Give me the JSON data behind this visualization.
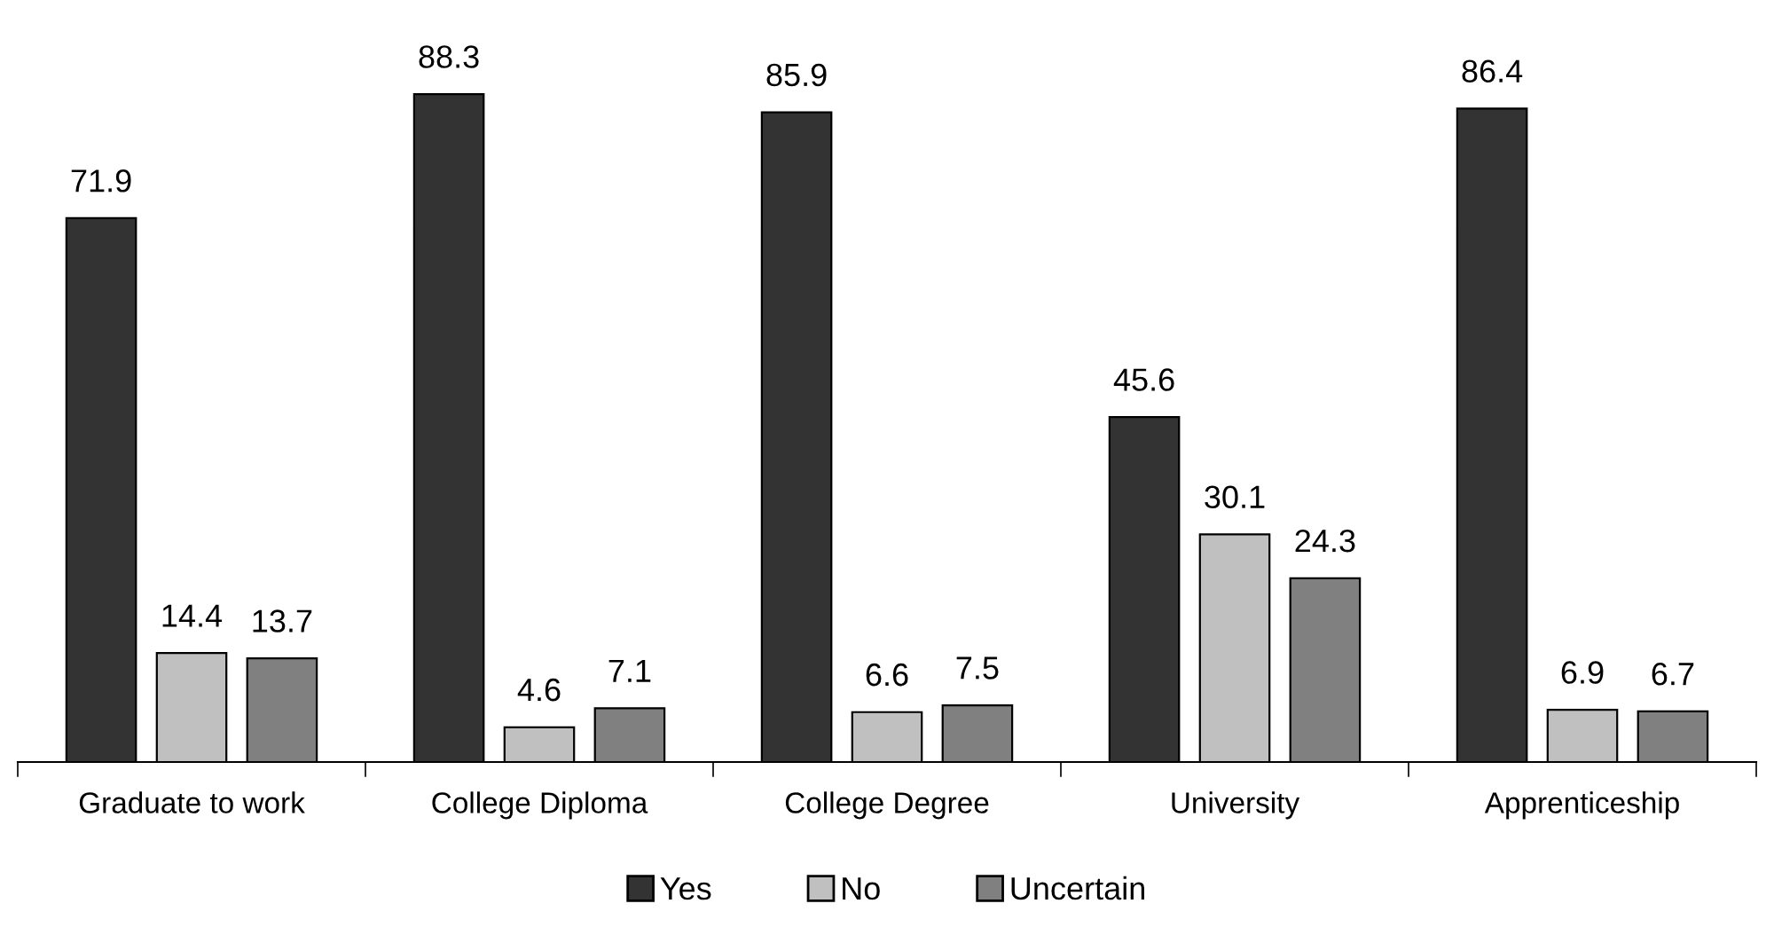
{
  "chart_data": {
    "type": "bar",
    "categories": [
      "Graduate to work",
      "College Diploma",
      "College Degree",
      "University",
      "Apprenticeship"
    ],
    "series": [
      {
        "name": "Yes",
        "color": "#333333",
        "values": [
          71.9,
          88.3,
          85.9,
          45.6,
          86.4
        ]
      },
      {
        "name": "No",
        "color": "#c0c0c0",
        "values": [
          14.4,
          4.6,
          6.6,
          30.1,
          6.9
        ]
      },
      {
        "name": "Uncertain",
        "color": "#808080",
        "values": [
          13.7,
          7.1,
          7.5,
          24.3,
          6.7
        ]
      }
    ],
    "data_labels": true,
    "grid": false,
    "legend": "bottom"
  }
}
